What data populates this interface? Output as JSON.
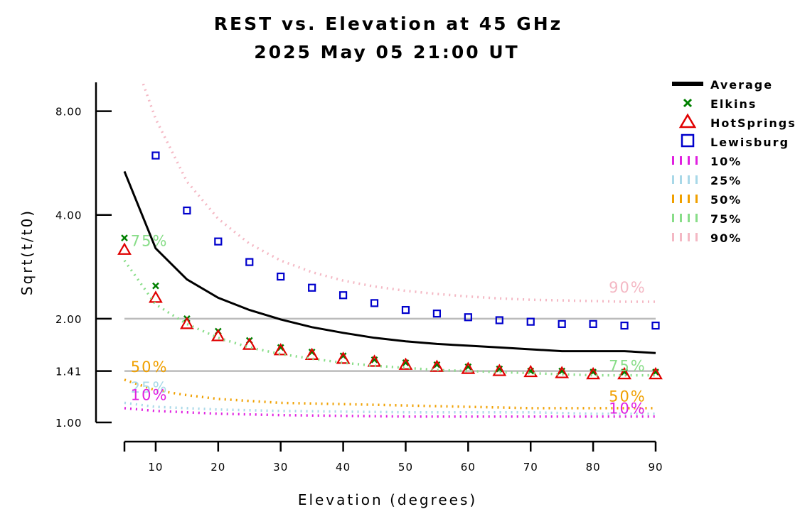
{
  "chart_data": {
    "type": "line",
    "title": "REST vs. Elevation at 45 GHz",
    "subtitle": "2025 May 05 21:00 UT",
    "xlabel": "Elevation (degrees)",
    "ylabel": "Sqrt(t/t0)",
    "xlim": [
      5,
      90
    ],
    "ylim": [
      1.0,
      9.7
    ],
    "yscale": "log",
    "x_ticks": [
      10,
      20,
      30,
      40,
      50,
      60,
      70,
      80,
      90
    ],
    "y_ticks": [
      {
        "value": 1.0,
        "label": "1.00"
      },
      {
        "value": 1.41,
        "label": "1.41"
      },
      {
        "value": 2.0,
        "label": "2.00"
      },
      {
        "value": 4.0,
        "label": "4.00"
      },
      {
        "value": 8.0,
        "label": "8.00"
      }
    ],
    "reference_lines": [
      1.41,
      2.0
    ],
    "legend_position": "right",
    "series": [
      {
        "name": "Average",
        "style": "line",
        "color": "#000000",
        "x": [
          5,
          10,
          15,
          20,
          25,
          30,
          35,
          40,
          45,
          50,
          55,
          60,
          65,
          70,
          75,
          80,
          85,
          90
        ],
        "y": [
          5.35,
          3.2,
          2.6,
          2.3,
          2.12,
          1.99,
          1.89,
          1.82,
          1.76,
          1.72,
          1.69,
          1.67,
          1.65,
          1.63,
          1.61,
          1.61,
          1.61,
          1.59
        ]
      },
      {
        "name": "Elkins",
        "style": "marker",
        "marker": "x",
        "color": "#008000",
        "x": [
          5,
          10,
          15,
          20,
          25,
          30,
          35,
          40,
          45,
          50,
          55,
          60,
          65,
          70,
          75,
          80,
          85,
          90
        ],
        "y": [
          3.43,
          2.49,
          2.0,
          1.84,
          1.73,
          1.65,
          1.6,
          1.56,
          1.52,
          1.49,
          1.47,
          1.45,
          1.43,
          1.41,
          1.41,
          1.4,
          1.4,
          1.4
        ]
      },
      {
        "name": "HotSprings",
        "style": "marker",
        "marker": "triangle",
        "color": "#e00000",
        "x": [
          5,
          10,
          15,
          20,
          25,
          30,
          35,
          40,
          45,
          50,
          55,
          60,
          65,
          70,
          75,
          80,
          85,
          90
        ],
        "y": [
          3.17,
          2.3,
          1.93,
          1.78,
          1.68,
          1.62,
          1.57,
          1.53,
          1.5,
          1.47,
          1.45,
          1.43,
          1.41,
          1.4,
          1.39,
          1.38,
          1.38,
          1.38
        ]
      },
      {
        "name": "Lewisburg",
        "style": "marker",
        "marker": "square",
        "color": "#0000cc",
        "x": [
          10,
          15,
          20,
          25,
          30,
          35,
          40,
          45,
          50,
          55,
          60,
          65,
          70,
          75,
          80,
          85,
          90
        ],
        "y": [
          5.95,
          4.12,
          3.35,
          2.92,
          2.65,
          2.46,
          2.34,
          2.22,
          2.12,
          2.07,
          2.02,
          1.98,
          1.96,
          1.93,
          1.93,
          1.91,
          1.91
        ]
      },
      {
        "name": "10%",
        "style": "dotted",
        "color": "#e020e0",
        "x": [
          5,
          10,
          20,
          30,
          40,
          50,
          60,
          70,
          80,
          90
        ],
        "y": [
          1.1,
          1.08,
          1.06,
          1.05,
          1.045,
          1.04,
          1.04,
          1.04,
          1.04,
          1.04
        ]
      },
      {
        "name": "25%",
        "style": "dotted",
        "color": "#a8d8e8",
        "x": [
          5,
          10,
          20,
          30,
          40,
          50,
          60,
          70,
          80,
          90
        ],
        "y": [
          1.14,
          1.11,
          1.09,
          1.08,
          1.075,
          1.07,
          1.07,
          1.07,
          1.06,
          1.06
        ]
      },
      {
        "name": "50%",
        "style": "dotted",
        "color": "#f0a000",
        "x": [
          5,
          10,
          15,
          20,
          30,
          40,
          50,
          60,
          70,
          80,
          90
        ],
        "y": [
          1.33,
          1.24,
          1.2,
          1.17,
          1.14,
          1.13,
          1.12,
          1.11,
          1.1,
          1.1,
          1.1
        ]
      },
      {
        "name": "75%",
        "style": "dotted",
        "color": "#88dd88",
        "x": [
          5,
          10,
          15,
          20,
          25,
          30,
          35,
          40,
          45,
          50,
          55,
          60,
          65,
          70,
          75,
          80,
          85,
          90
        ],
        "y": [
          2.95,
          2.2,
          1.93,
          1.76,
          1.65,
          1.58,
          1.53,
          1.49,
          1.46,
          1.44,
          1.42,
          1.41,
          1.4,
          1.39,
          1.38,
          1.37,
          1.37,
          1.37
        ]
      },
      {
        "name": "90%",
        "style": "dotted",
        "color": "#f4b8c4",
        "x": [
          8,
          10,
          15,
          20,
          25,
          30,
          35,
          40,
          45,
          50,
          55,
          60,
          65,
          70,
          75,
          80,
          85,
          90
        ],
        "y": [
          9.6,
          7.6,
          5.0,
          3.9,
          3.3,
          2.95,
          2.73,
          2.58,
          2.48,
          2.41,
          2.36,
          2.32,
          2.29,
          2.27,
          2.26,
          2.25,
          2.24,
          2.24
        ]
      }
    ],
    "curve_labels": [
      {
        "text": "75%",
        "series": "75%",
        "x": 6,
        "y": 3.25
      },
      {
        "text": "50%",
        "series": "50%",
        "x": 6,
        "y": 1.4
      },
      {
        "text": "25%",
        "series": "25%",
        "x": 6,
        "y": 1.22
      },
      {
        "text": "10%",
        "series": "10%",
        "x": 6,
        "y": 1.16
      },
      {
        "text": "90%",
        "series": "90%",
        "x": 82.5,
        "y": 2.38
      },
      {
        "text": "75%",
        "series": "75%",
        "x": 82.5,
        "y": 1.41
      },
      {
        "text": "50%",
        "series": "50%",
        "x": 82.5,
        "y": 1.15
      },
      {
        "text": "10%",
        "series": "10%",
        "x": 82.5,
        "y": 1.06
      }
    ]
  }
}
